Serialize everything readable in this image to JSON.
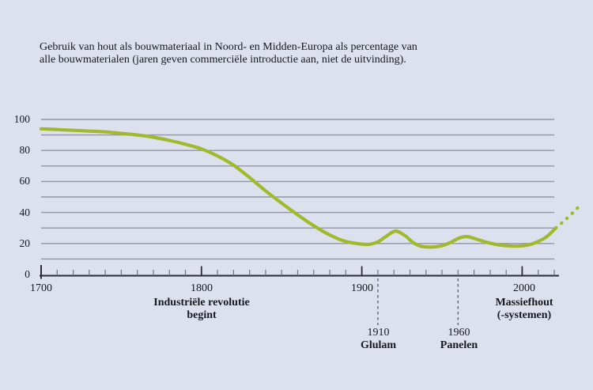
{
  "title": {
    "line1": "Gebruik van hout als bouwmateriaal in Noord- en Midden-Europa als percentage van",
    "line2": "alle bouwmaterialen (jaren geven commerciële introductie aan, niet de uitvinding)."
  },
  "colors": {
    "background": "#dde1ee",
    "line_green": "#a1b92d",
    "grid": "#9094a6",
    "axis": "#2b2b35",
    "tick": "#70748a",
    "dash_line": "#5f6374",
    "text": "#17171f"
  },
  "chart_data": {
    "type": "line",
    "title": "Gebruik van hout als bouwmateriaal in Noord- en Midden-Europa als percentage van alle bouwmaterialen (jaren geven commerciële introductie aan, niet de uitvinding).",
    "xlabel": "",
    "ylabel": "",
    "x_range": [
      1700,
      2020
    ],
    "y_range": [
      0,
      100
    ],
    "grid": "horizontal gridlines every 10 units",
    "legend": "none",
    "x_ticks": [
      "1700",
      "1800",
      "1900",
      "2000"
    ],
    "x_tick_years": [
      1700,
      1800,
      1900,
      2000
    ],
    "x_minor_tick_step_years": 10,
    "y_ticks": [
      "100",
      "80",
      "60",
      "40",
      "20",
      "0"
    ],
    "y_tick_values": [
      100,
      80,
      60,
      40,
      20,
      0
    ],
    "series": [
      {
        "name": "houtgebruik-percentage",
        "style": "solid",
        "points": [
          [
            1700,
            94
          ],
          [
            1710,
            93.5
          ],
          [
            1720,
            93
          ],
          [
            1730,
            92.5
          ],
          [
            1740,
            92
          ],
          [
            1750,
            91
          ],
          [
            1760,
            90
          ],
          [
            1770,
            88.5
          ],
          [
            1780,
            86.5
          ],
          [
            1790,
            84
          ],
          [
            1800,
            81
          ],
          [
            1810,
            76.5
          ],
          [
            1820,
            70.5
          ],
          [
            1830,
            62.5
          ],
          [
            1840,
            54
          ],
          [
            1850,
            46
          ],
          [
            1860,
            38.5
          ],
          [
            1870,
            31.5
          ],
          [
            1880,
            25.5
          ],
          [
            1890,
            21.3
          ],
          [
            1900,
            19.6
          ],
          [
            1905,
            19.5
          ],
          [
            1910,
            21
          ],
          [
            1915,
            24.5
          ],
          [
            1921,
            28
          ],
          [
            1927,
            25
          ],
          [
            1932,
            20.6
          ],
          [
            1937,
            18.2
          ],
          [
            1943,
            17.7
          ],
          [
            1949,
            18.3
          ],
          [
            1955,
            20.5
          ],
          [
            1960,
            23.2
          ],
          [
            1965,
            24.5
          ],
          [
            1970,
            23.3
          ],
          [
            1977,
            21
          ],
          [
            1985,
            19.2
          ],
          [
            1991,
            18.5
          ],
          [
            1997,
            18.3
          ],
          [
            2003,
            18.9
          ],
          [
            2009,
            20.8
          ],
          [
            2015,
            24.2
          ],
          [
            2021,
            30
          ]
        ]
      },
      {
        "name": "projectie-toekomst",
        "style": "dotted",
        "points": [
          [
            2021,
            30
          ],
          [
            2025,
            33.5
          ],
          [
            2029,
            37.3
          ],
          [
            2033,
            41.3
          ],
          [
            2036,
            44.5
          ]
        ]
      }
    ],
    "annotations": [
      {
        "year": 1800,
        "lines": [
          "Industriële revolutie",
          "begint"
        ],
        "dashed_line": false
      },
      {
        "year": 1910,
        "year_label": "1910",
        "label": "Glulam",
        "dashed_line": true
      },
      {
        "year": 1960,
        "year_label": "1960",
        "label": "Panelen",
        "dashed_line": true
      },
      {
        "year": 2000,
        "lines": [
          "Massiefhout",
          "(-systemen)"
        ],
        "dashed_line": false
      }
    ]
  }
}
